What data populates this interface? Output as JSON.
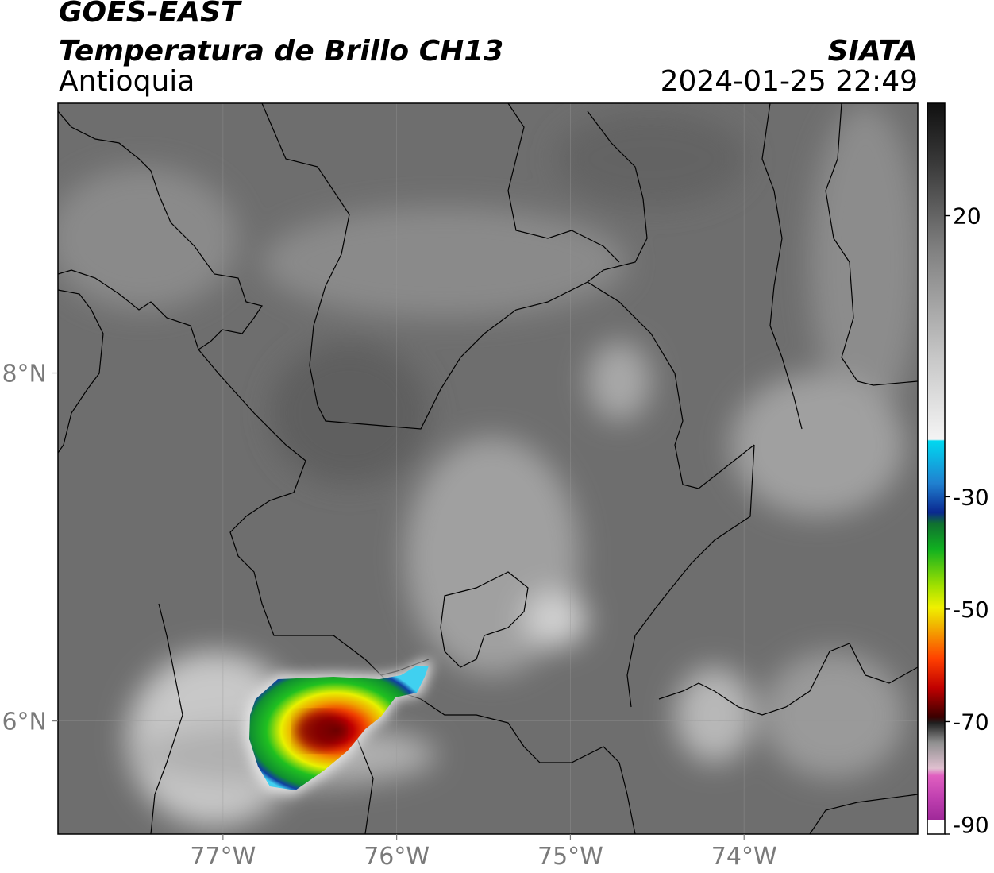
{
  "header": {
    "line1": "GOES-EAST",
    "line2": "Temperatura de Brillo CH13",
    "line3": "Antioquia",
    "org": "SIATA",
    "datetime": "2024-01-25 22:49"
  },
  "map": {
    "lon_range": [
      -77.95,
      -73.0
    ],
    "lat_range": [
      5.35,
      9.55
    ],
    "lon_ticks": [
      {
        "value": -77,
        "label": "77°W"
      },
      {
        "value": -76,
        "label": "76°W"
      },
      {
        "value": -75,
        "label": "75°W"
      },
      {
        "value": -74,
        "label": "74°W"
      }
    ],
    "lat_ticks": [
      {
        "value": 8,
        "label": "8°N"
      },
      {
        "value": 6,
        "label": "6°N"
      }
    ],
    "storm_cell": {
      "center_lon": -76.45,
      "center_lat": 5.82,
      "min_temp_c": -70
    }
  },
  "colorbar": {
    "range": [
      -90,
      40
    ],
    "ticks": [
      {
        "value": 20,
        "label": "20"
      },
      {
        "value": -30,
        "label": "-30"
      },
      {
        "value": -50,
        "label": "-50"
      },
      {
        "value": -70,
        "label": "-70"
      },
      {
        "value": -90,
        "label": "-90"
      }
    ],
    "colors": {
      "warm_gray": "#6a6a6a",
      "cold_white": "#f2f2f2",
      "cyan": "#00d8f0",
      "blue": "#102890",
      "green": "#10b020",
      "yellow": "#f0f000",
      "orange": "#f08000",
      "red": "#d00000",
      "dark_red": "#3a0000",
      "pink": "#e060c0",
      "purple": "#902090"
    }
  }
}
